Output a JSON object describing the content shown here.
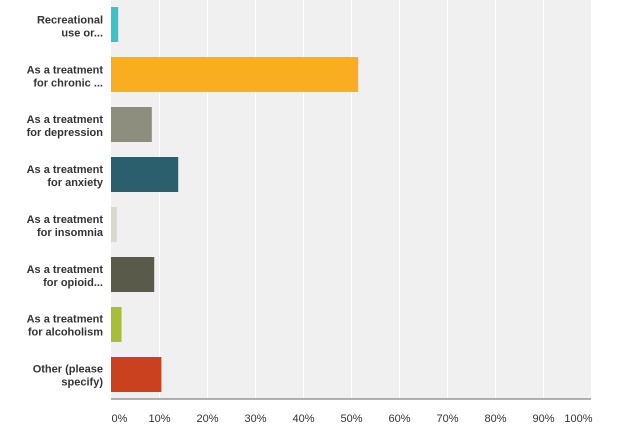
{
  "chart_data": {
    "type": "bar",
    "orientation": "horizontal",
    "categories": [
      [
        "Recreational",
        "use or..."
      ],
      [
        "As a treatment",
        "for chronic ..."
      ],
      [
        "As a treatment",
        "for depression"
      ],
      [
        "As a treatment",
        "for anxiety"
      ],
      [
        "As a treatment",
        "for insomnia"
      ],
      [
        "As a treatment",
        "for opioid..."
      ],
      [
        "As a treatment",
        "for alcoholism"
      ],
      [
        "Other (please",
        "specify)"
      ]
    ],
    "values": [
      1.5,
      51.5,
      8.5,
      14,
      1.2,
      9,
      2.2,
      10.5
    ],
    "colors": [
      "#3cc3c4",
      "#f9ae22",
      "#8d8e7e",
      "#2c5f6e",
      "#d8d8cc",
      "#5a5a4a",
      "#a8be3a",
      "#ca4120"
    ],
    "xlim": [
      0,
      100
    ],
    "xticks": [
      0,
      10,
      20,
      30,
      40,
      50,
      60,
      70,
      80,
      90,
      100
    ],
    "xtick_labels": [
      "0%",
      "10%",
      "20%",
      "30%",
      "40%",
      "50%",
      "60%",
      "70%",
      "80%",
      "90%",
      "100%"
    ],
    "grid": true,
    "title": "",
    "xlabel": "",
    "ylabel": ""
  }
}
